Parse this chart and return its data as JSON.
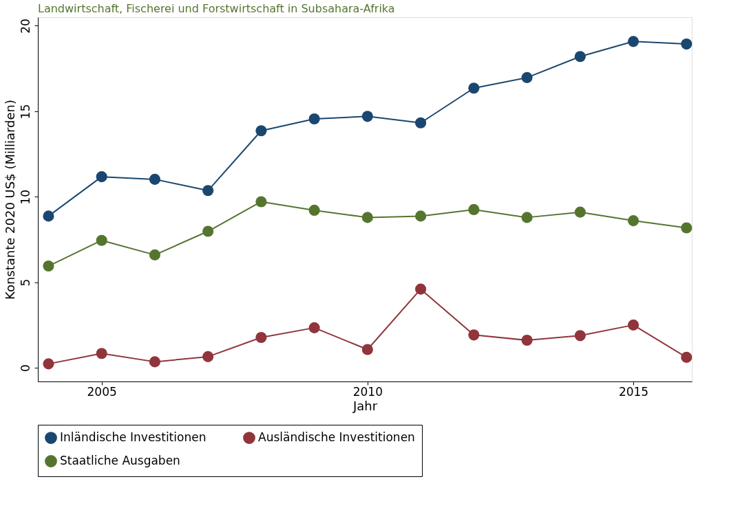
{
  "chart_data": {
    "type": "line",
    "title": "Landwirtschaft, Fischerei und Forstwirtschaft in Subsahara-Afrika",
    "xlabel": "Jahr",
    "ylabel": "Konstante 2020 US$ (Milliarden)",
    "x": [
      2004,
      2005,
      2006,
      2007,
      2008,
      2009,
      2010,
      2011,
      2012,
      2013,
      2014,
      2015,
      2016
    ],
    "series": [
      {
        "name": "Inländische Investitionen",
        "color": "#1a476f",
        "values": [
          8.87,
          11.17,
          11.02,
          10.36,
          13.86,
          14.55,
          14.7,
          14.32,
          16.35,
          16.97,
          18.2,
          19.08,
          18.93
        ]
      },
      {
        "name": "Ausländische Investitionen",
        "color": "#90353b",
        "values": [
          0.23,
          0.84,
          0.35,
          0.65,
          1.77,
          2.34,
          1.07,
          4.6,
          1.92,
          1.61,
          1.88,
          2.5,
          0.61
        ]
      },
      {
        "name": "Staatliche Ausgaben",
        "color": "#55752f",
        "values": [
          5.95,
          7.45,
          6.6,
          7.98,
          9.71,
          9.21,
          8.79,
          8.87,
          9.25,
          8.79,
          9.1,
          8.6,
          8.18
        ]
      }
    ],
    "xlim": [
      2003.8,
      2016.1
    ],
    "ylim": [
      -0.8,
      20.5
    ],
    "xticks": [
      2005,
      2010,
      2015
    ],
    "yticks": [
      0,
      5,
      10,
      15,
      20
    ],
    "grid": false,
    "legend": "bottom",
    "marker": "circle",
    "line_style": "solid"
  }
}
